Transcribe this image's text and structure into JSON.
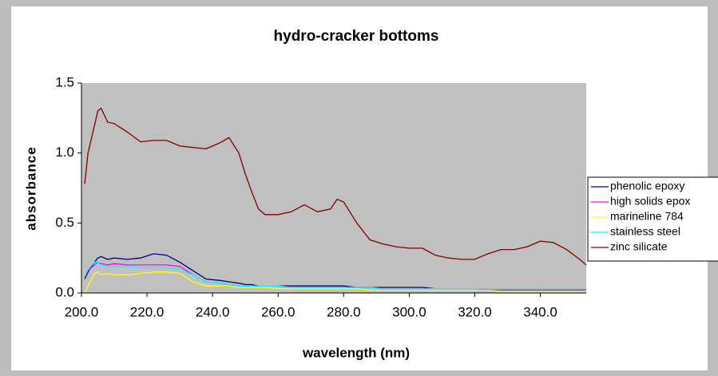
{
  "chart_data": {
    "type": "line",
    "title": "hydro-cracker bottoms",
    "x_label": "wavelength (nm)",
    "y_label": "absorbance",
    "x": [
      201,
      202,
      204,
      205,
      206,
      208,
      210,
      214,
      218,
      222,
      226,
      230,
      234,
      238,
      242,
      245,
      248,
      250,
      252,
      254,
      256,
      260,
      264,
      268,
      272,
      276,
      278,
      280,
      284,
      288,
      292,
      296,
      300,
      304,
      308,
      312,
      316,
      320,
      324,
      328,
      332,
      336,
      340,
      344,
      348,
      352,
      354
    ],
    "series": [
      {
        "name": "phenolic epoxy",
        "color": "#000080",
        "values": [
          0.1,
          0.15,
          0.22,
          0.25,
          0.26,
          0.24,
          0.25,
          0.24,
          0.25,
          0.28,
          0.27,
          0.22,
          0.16,
          0.1,
          0.09,
          0.08,
          0.07,
          0.06,
          0.06,
          0.05,
          0.05,
          0.05,
          0.05,
          0.05,
          0.05,
          0.05,
          0.05,
          0.05,
          0.04,
          0.04,
          0.04,
          0.04,
          0.04,
          0.04,
          0.03,
          0.03,
          0.03,
          0.03,
          0.03,
          0.03,
          0.03,
          0.03,
          0.03,
          0.03,
          0.03,
          0.03,
          0.03
        ]
      },
      {
        "name": "high solids epox",
        "color": "#ff00ff",
        "values": [
          0.12,
          0.16,
          0.2,
          0.22,
          0.21,
          0.2,
          0.21,
          0.2,
          0.2,
          0.2,
          0.2,
          0.19,
          0.13,
          0.08,
          0.07,
          0.06,
          0.05,
          0.05,
          0.05,
          0.05,
          0.05,
          0.05,
          0.04,
          0.04,
          0.04,
          0.04,
          0.04,
          0.04,
          0.04,
          0.04,
          0.03,
          0.03,
          0.03,
          0.03,
          0.03,
          0.03,
          0.03,
          0.03,
          0.02,
          0.02,
          0.02,
          0.02,
          0.02,
          0.02,
          0.02,
          0.02,
          0.02
        ]
      },
      {
        "name": "marineline 784",
        "color": "#ffff00",
        "values": [
          0.0,
          0.05,
          0.14,
          0.15,
          0.13,
          0.14,
          0.13,
          0.13,
          0.14,
          0.15,
          0.15,
          0.14,
          0.08,
          0.05,
          0.05,
          0.05,
          0.04,
          0.04,
          0.04,
          0.04,
          0.04,
          0.03,
          0.03,
          0.03,
          0.03,
          0.03,
          0.03,
          0.03,
          0.03,
          0.02,
          0.02,
          0.02,
          0.02,
          0.02,
          0.02,
          0.02,
          0.02,
          0.02,
          0.02,
          0.01,
          0.01,
          0.01,
          0.01,
          0.01,
          0.01,
          0.01,
          0.01
        ]
      },
      {
        "name": "stainless steel",
        "color": "#00ffff",
        "values": [
          0.12,
          0.17,
          0.22,
          0.22,
          0.2,
          0.19,
          0.19,
          0.19,
          0.18,
          0.18,
          0.18,
          0.17,
          0.13,
          0.08,
          0.07,
          0.06,
          0.05,
          0.05,
          0.05,
          0.05,
          0.05,
          0.05,
          0.04,
          0.04,
          0.04,
          0.04,
          0.04,
          0.04,
          0.04,
          0.04,
          0.03,
          0.03,
          0.03,
          0.03,
          0.03,
          0.03,
          0.03,
          0.03,
          0.03,
          0.03,
          0.03,
          0.03,
          0.03,
          0.03,
          0.03,
          0.03,
          0.03
        ]
      },
      {
        "name": "zinc silicate",
        "color": "#800000",
        "values": [
          0.78,
          1.0,
          1.2,
          1.3,
          1.32,
          1.22,
          1.21,
          1.15,
          1.08,
          1.09,
          1.09,
          1.05,
          1.04,
          1.03,
          1.07,
          1.11,
          1.0,
          0.85,
          0.72,
          0.6,
          0.56,
          0.56,
          0.58,
          0.63,
          0.58,
          0.6,
          0.67,
          0.65,
          0.5,
          0.38,
          0.35,
          0.33,
          0.32,
          0.32,
          0.27,
          0.25,
          0.24,
          0.24,
          0.28,
          0.31,
          0.31,
          0.33,
          0.37,
          0.36,
          0.31,
          0.24,
          0.2
        ]
      }
    ],
    "xlim": [
      200,
      354
    ],
    "xticks": [
      {
        "value": 200,
        "label": "200.0"
      },
      {
        "value": 220,
        "label": "220.0"
      },
      {
        "value": 240,
        "label": "240.0"
      },
      {
        "value": 260,
        "label": "260.0"
      },
      {
        "value": 280,
        "label": "280.0"
      },
      {
        "value": 300,
        "label": "300.0"
      },
      {
        "value": 320,
        "label": "320.0"
      },
      {
        "value": 340,
        "label": "340.0"
      }
    ],
    "ylim": [
      0,
      1.5
    ],
    "yticks": [
      {
        "value": 0,
        "label": "0.0"
      },
      {
        "value": 0.5,
        "label": "0.5"
      },
      {
        "value": 1,
        "label": "1.0"
      },
      {
        "value": 1.5,
        "label": "1.5"
      }
    ],
    "plot_background": "#c0c0c0",
    "legend": "right"
  }
}
